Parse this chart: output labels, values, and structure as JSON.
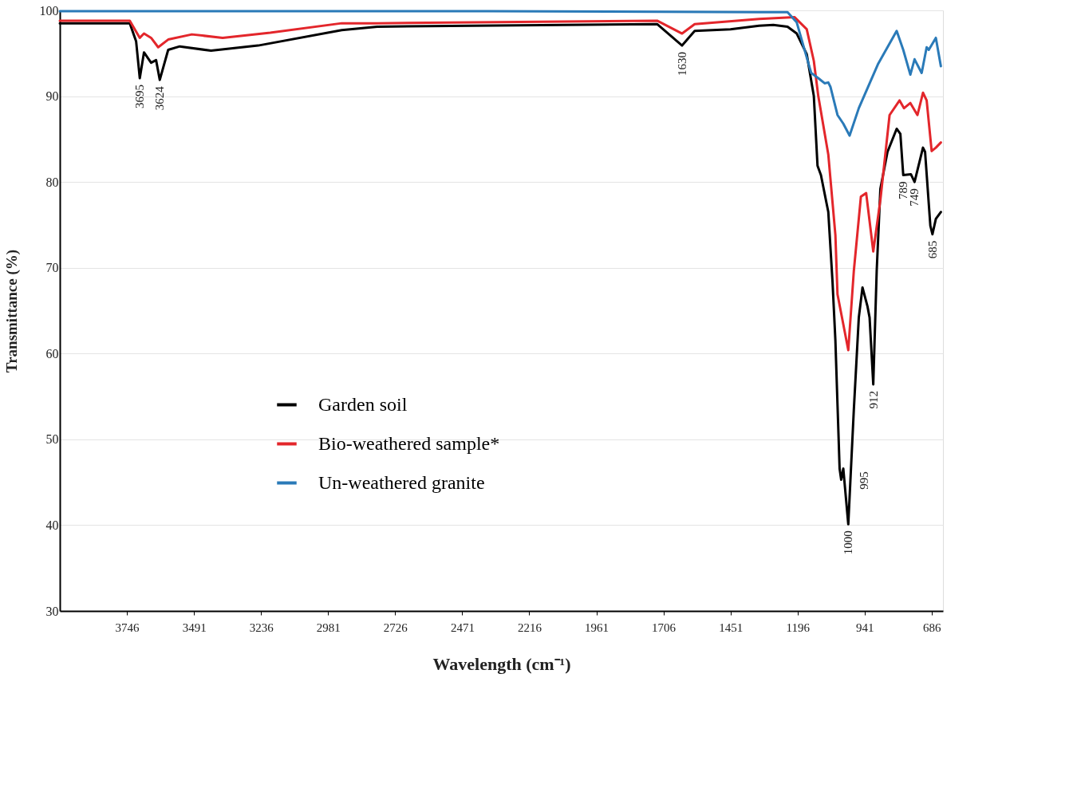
{
  "chart_data": {
    "type": "line",
    "xlabel": "Wavelength (cm⁻¹)",
    "ylabel": "Transmittance (%)",
    "xlim": [
      4001,
      643
    ],
    "xticks": [
      3746,
      3491,
      3236,
      2981,
      2726,
      2471,
      2216,
      1961,
      1706,
      1451,
      1196,
      941,
      686
    ],
    "ylim": [
      30,
      100
    ],
    "yticks": [
      30,
      40,
      50,
      60,
      70,
      80,
      90,
      100
    ],
    "grid": "y",
    "legend": "left",
    "series": [
      {
        "name": "Garden soil",
        "color": "#000000",
        "x": [
          4001,
          3757,
          3735,
          3711,
          3697,
          3681,
          3654,
          3635,
          3621,
          3589,
          3545,
          3426,
          3247,
          2929,
          2794,
          1730,
          1635,
          1587,
          1451,
          1342,
          1288,
          1234,
          1199,
          1161,
          1134,
          1120,
          1107,
          1079,
          1063,
          1052,
          1036,
          1030,
          1022,
          1003,
          982,
          963,
          949,
          930,
          922,
          908,
          895,
          881,
          854,
          819,
          805,
          794,
          765,
          751,
          719,
          711,
          691,
          683,
          670,
          651
        ],
        "values": [
          98.5,
          98.5,
          98.5,
          96.4,
          92.1,
          95.1,
          93.9,
          94.2,
          91.9,
          95.4,
          95.8,
          95.3,
          95.9,
          97.7,
          98.1,
          98.4,
          95.9,
          97.6,
          97.8,
          98.2,
          98.3,
          98.1,
          97.3,
          94.9,
          90.0,
          81.9,
          80.8,
          76.5,
          68.4,
          61.5,
          46.6,
          45.3,
          46.6,
          40.1,
          53.4,
          64.2,
          67.7,
          65.5,
          64.2,
          56.4,
          69.6,
          79.2,
          83.5,
          86.2,
          85.6,
          80.8,
          80.9,
          80.0,
          84.0,
          83.5,
          74.9,
          73.9,
          75.7,
          76.5
        ]
      },
      {
        "name": "Bio-weathered sample*",
        "color": "#e3262b",
        "x": [
          4001,
          3735,
          3697,
          3681,
          3654,
          3627,
          3589,
          3499,
          3382,
          3201,
          2929,
          2794,
          1730,
          1635,
          1587,
          1342,
          1207,
          1161,
          1134,
          1117,
          1079,
          1052,
          1044,
          1003,
          982,
          955,
          935,
          908,
          881,
          846,
          808,
          791,
          767,
          740,
          719,
          705,
          686,
          670,
          651
        ],
        "values": [
          98.8,
          98.8,
          96.8,
          97.3,
          96.8,
          95.7,
          96.6,
          97.2,
          96.8,
          97.4,
          98.5,
          98.5,
          98.8,
          97.3,
          98.4,
          99.0,
          99.2,
          97.8,
          94.1,
          90.0,
          83.2,
          73.8,
          66.9,
          60.4,
          69.6,
          78.3,
          78.7,
          71.9,
          77.9,
          87.8,
          89.5,
          88.6,
          89.2,
          87.8,
          90.4,
          89.5,
          83.6,
          84.0,
          84.6
        ]
      },
      {
        "name": "Un-weathered granite",
        "color": "#2a7ab8",
        "x": [
          4001,
          2373,
          1342,
          1234,
          1199,
          1144,
          1117,
          1093,
          1079,
          1071,
          1044,
          1022,
          998,
          963,
          889,
          819,
          794,
          767,
          751,
          724,
          705,
          697,
          670,
          651
        ],
        "values": [
          99.9,
          99.9,
          99.8,
          99.8,
          98.6,
          92.7,
          92.1,
          91.5,
          91.6,
          91.1,
          87.8,
          86.8,
          85.4,
          88.6,
          93.8,
          97.6,
          95.4,
          92.5,
          94.3,
          92.7,
          95.7,
          95.4,
          96.8,
          93.5
        ]
      }
    ],
    "annotations": [
      {
        "text": "3695",
        "x": 3697,
        "y": 92.1
      },
      {
        "text": "3624",
        "x": 3621,
        "y": 91.9
      },
      {
        "text": "1630",
        "x": 1635,
        "y": 95.9
      },
      {
        "text": "1000",
        "x": 1003,
        "y": 40.1
      },
      {
        "text": "995",
        "x": 995,
        "y": 45.2
      },
      {
        "text": "912",
        "x": 908,
        "y": 56.4
      },
      {
        "text": "789",
        "x": 794,
        "y": 80.8
      },
      {
        "text": "749",
        "x": 751,
        "y": 80.0
      },
      {
        "text": "685",
        "x": 683,
        "y": 73.9
      }
    ]
  }
}
